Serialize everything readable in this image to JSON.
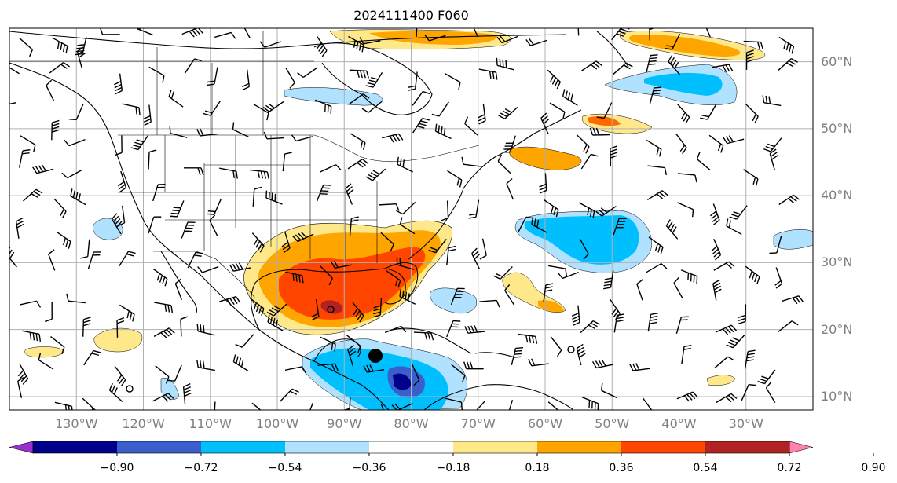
{
  "title": "2024111400 F060",
  "map": {
    "extent_lon": [
      -140,
      -20
    ],
    "extent_lat": [
      8,
      65
    ],
    "projection": "PlateCarree",
    "grid": true,
    "features": [
      "coastlines",
      "country-borders",
      "us-state-borders",
      "wind-barbs",
      "shaded-anomaly-field"
    ],
    "markers": [
      {
        "name": "storm-center",
        "lon": -85,
        "lat": 16
      }
    ]
  },
  "lat_labels": [
    "60°N",
    "50°N",
    "40°N",
    "30°N",
    "20°N",
    "10°N"
  ],
  "lat_values": [
    60,
    50,
    40,
    30,
    20,
    10
  ],
  "lon_labels": [
    "130°W",
    "120°W",
    "110°W",
    "100°W",
    "90°W",
    "80°W",
    "70°W",
    "60°W",
    "50°W",
    "40°W",
    "30°W"
  ],
  "lon_values": [
    -130,
    -120,
    -110,
    -100,
    -90,
    -80,
    -70,
    -60,
    -50,
    -40,
    -30
  ],
  "colorbar": {
    "ticks": [
      "−0.90",
      "−0.72",
      "−0.54",
      "−0.36",
      "−0.18",
      "0.18",
      "0.36",
      "0.54",
      "0.72",
      "0.90"
    ],
    "colors": [
      "#9932cc",
      "#00008b",
      "#3a5fcd",
      "#00bfff",
      "#b0e2ff",
      "#ffffff",
      "#ffe88a",
      "#ffa500",
      "#ff4500",
      "#b22222",
      "#ff82ab"
    ],
    "extend": "both"
  }
}
